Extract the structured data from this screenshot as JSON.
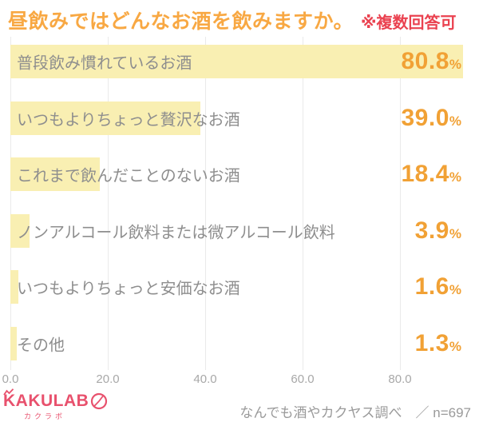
{
  "title": {
    "text": "昼飲みではどんなお酒を飲みますか。",
    "note": "※複数回答可"
  },
  "colors": {
    "title_orange": "#F8A843",
    "note_red": "#EA4250",
    "bar_yellow": "#F9EFB2",
    "value_orange": "#F1A135",
    "label_gray": "#8E8E8E",
    "axis_gray": "#A8A8A8",
    "grid_gray": "#EAEAEA",
    "logo_pink": "#E8516D"
  },
  "chart_data": {
    "type": "bar",
    "orientation": "horizontal",
    "title": "昼飲みではどんなお酒を飲みますか。",
    "categories": [
      "普段飲み慣れているお酒",
      "いつもよりちょっと贅沢なお酒",
      "これまで飲んだことのないお酒",
      "ノンアルコール飲料または微アルコール飲料",
      "いつもよりちょっと安価なお酒",
      "その他"
    ],
    "values": [
      80.8,
      39.0,
      18.4,
      3.9,
      1.6,
      1.3
    ],
    "display_values": [
      "80.8",
      "39.0",
      "18.4",
      "3.9",
      "1.6",
      "1.3"
    ],
    "value_suffix": "%",
    "xlabel": "",
    "ylabel": "",
    "xlim": [
      0,
      80
    ],
    "xticks": [
      "0.0",
      "20.0",
      "40.0",
      "60.0",
      "80.0"
    ],
    "grid": true,
    "legend": false
  },
  "footer": {
    "logo_text": "KAKULAB",
    "logo_subtext": "カクラボ",
    "source": "なんでも酒やカクヤス調べ　／ n=697"
  }
}
